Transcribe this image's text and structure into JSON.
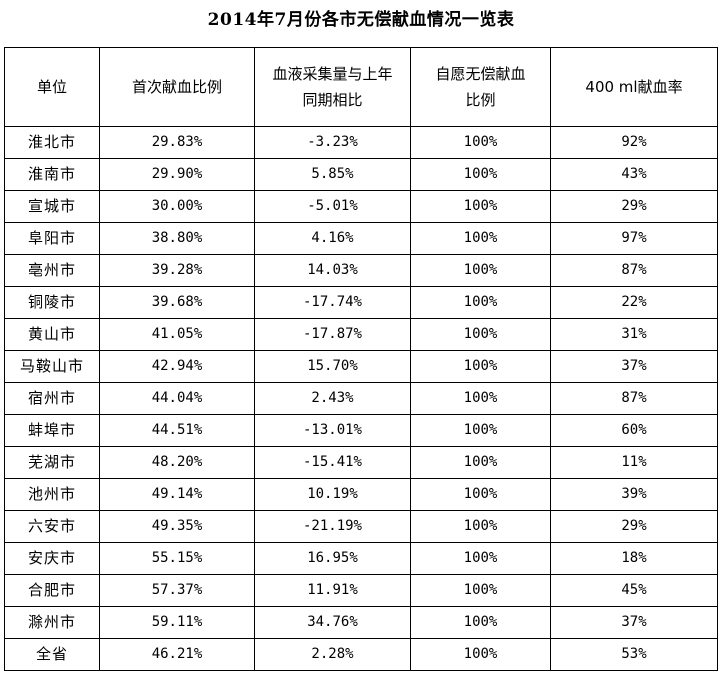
{
  "title": "2014年7月份各市无偿献血情况一览表",
  "headers": [
    "单位",
    "首次献血比例",
    "血液采集量与上年同期相比",
    "自愿无偿献血比例",
    "400 ml献血率"
  ],
  "rows": [
    [
      "淮北市",
      "29.83%",
      "-3.23%",
      "100%",
      "92%"
    ],
    [
      "淮南市",
      "29.90%",
      "5.85%",
      "100%",
      "43%"
    ],
    [
      "宣城市",
      "30.00%",
      "-5.01%",
      "100%",
      "29%"
    ],
    [
      "阜阳市",
      "38.80%",
      "4.16%",
      "100%",
      "97%"
    ],
    [
      "亳州市",
      "39.28%",
      "14.03%",
      "100%",
      "87%"
    ],
    [
      "铜陵市",
      "39.68%",
      "-17.74%",
      "100%",
      "22%"
    ],
    [
      "黄山市",
      "41.05%",
      "-17.87%",
      "100%",
      "31%"
    ],
    [
      "马鞍山市",
      "42.94%",
      "15.70%",
      "100%",
      "37%"
    ],
    [
      "宿州市",
      "44.04%",
      "2.43%",
      "100%",
      "87%"
    ],
    [
      "蚌埠市",
      "44.51%",
      "-13.01%",
      "100%",
      "60%"
    ],
    [
      "芜湖市",
      "48.20%",
      "-15.41%",
      "100%",
      "11%"
    ],
    [
      "池州市",
      "49.14%",
      "10.19%",
      "100%",
      "39%"
    ],
    [
      "六安市",
      "49.35%",
      "-21.19%",
      "100%",
      "29%"
    ],
    [
      "安庆市",
      "55.15%",
      "16.95%",
      "100%",
      "18%"
    ],
    [
      "合肥市",
      "57.37%",
      "11.91%",
      "100%",
      "45%"
    ],
    [
      "滁州市",
      "59.11%",
      "34.76%",
      "100%",
      "37%"
    ],
    [
      "全省",
      "46.21%",
      "2.28%",
      "100%",
      "53%"
    ]
  ]
}
